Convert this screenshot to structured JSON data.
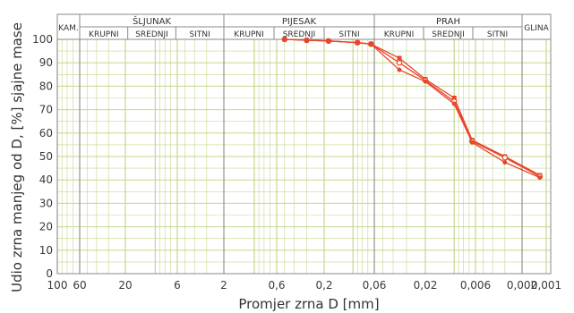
{
  "chart_data": {
    "type": "line",
    "title": "",
    "xlabel": "Promjer zrna D [mm]",
    "ylabel": "Udio zrna manjeg od D, [%] sjajne mase",
    "x_scale": "log",
    "x_reversed": true,
    "xlim": [
      100,
      0.001
    ],
    "ylim": [
      0,
      100
    ],
    "grid": true,
    "x_tick_labels": [
      "100",
      "60",
      "20",
      "6",
      "2",
      "0,6",
      "0,2",
      "0,06",
      "0,02",
      "0,006",
      "0,002",
      "0,001"
    ],
    "y_tick_labels": [
      "0",
      "10",
      "20",
      "30",
      "40",
      "50",
      "60",
      "70",
      "80",
      "90",
      "100"
    ],
    "bands": [
      {
        "label": "KAM.",
        "subs": []
      },
      {
        "label": "ŠLJUNAK",
        "subs": [
          "KRUPNI",
          "SREDNJI",
          "SITNI"
        ]
      },
      {
        "label": "PIJESAK",
        "subs": [
          "KRUPNI",
          "SREDNJI",
          "SITNI"
        ]
      },
      {
        "label": "PRAH",
        "subs": [
          "KRUPNI",
          "SREDNJI",
          "SITNI"
        ]
      },
      {
        "label": "GLINA",
        "subs": []
      }
    ],
    "series": [
      {
        "values_x": [
          0.5,
          0.3,
          0.18,
          0.09,
          0.065,
          0.035,
          0.02,
          0.01,
          0.0065,
          0.003,
          0.0012
        ],
        "values_y": [
          100,
          99.6,
          99.3,
          98.6,
          98,
          92,
          83,
          75,
          57,
          50,
          42
        ]
      },
      {
        "values_x": [
          0.5,
          0.3,
          0.18,
          0.09,
          0.065,
          0.035,
          0.02,
          0.01,
          0.0065,
          0.003,
          0.0012
        ],
        "values_y": [
          100,
          99.6,
          99.3,
          98.6,
          98,
          90,
          82.5,
          73.5,
          56.5,
          49.5,
          41.5
        ]
      },
      {
        "values_x": [
          0.5,
          0.3,
          0.18,
          0.09,
          0.065,
          0.035,
          0.02,
          0.01,
          0.0065,
          0.003,
          0.0012
        ],
        "values_y": [
          100,
          99.6,
          99.3,
          98.6,
          98,
          87,
          82,
          72.5,
          56,
          47.5,
          41
        ]
      }
    ],
    "colors": {
      "series": "#e8452a",
      "grid": "#c5d78f",
      "frame": "#888888"
    }
  }
}
